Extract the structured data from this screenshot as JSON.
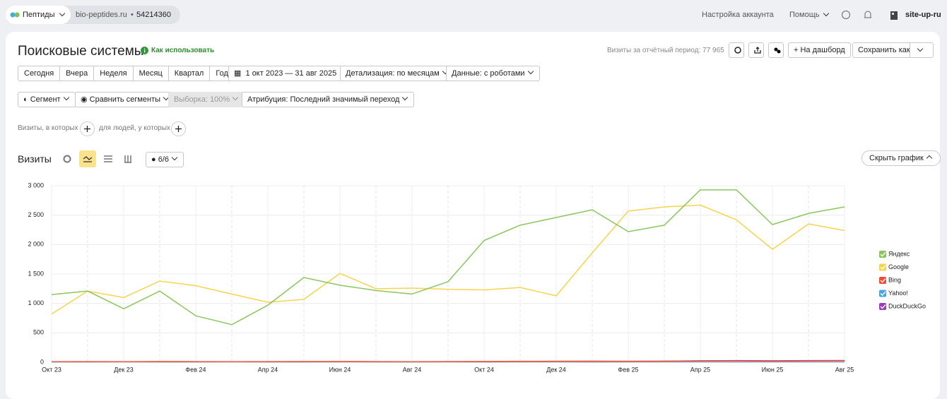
{
  "header": {
    "project": "Пептиды",
    "site": "bio-peptides.ru",
    "counter": "54214360",
    "account_settings": "Настройка аккаунта",
    "help": "Помощь",
    "user": "site-up-ru"
  },
  "report": {
    "title": "Поисковые системы",
    "how_to": "Как использовать",
    "visits_total": "Визиты за отчётный период: 77 965",
    "to_dashboard": "На дашборд",
    "save_as": "Сохранить как"
  },
  "periods": [
    "Сегодня",
    "Вчера",
    "Неделя",
    "Месяц",
    "Квартал",
    "Год"
  ],
  "date_range": "1 окт 2023 — 31 авг 2025",
  "detail": "Детализация: по месяцам",
  "data_mode": "Данные: с роботами",
  "segment": "Сегмент",
  "compare": "Сравнить сегменты",
  "sample": "Выборка: 100%",
  "attribution": "Атрибуция: Последний значимый переход",
  "filter_visits": "Визиты, в которых",
  "filter_people": "для людей, у которых",
  "chart_header": {
    "title": "Визиты",
    "annotations": "6/6",
    "hide": "Скрыть график"
  },
  "chart_data": {
    "type": "line",
    "categories": [
      "Окт 23",
      null,
      "Дек 23",
      null,
      "Фев 24",
      null,
      "Апр 24",
      null,
      "Июн 24",
      null,
      "Авг 24",
      null,
      "Окт 24",
      null,
      "Дек 24",
      null,
      "Фев 25",
      null,
      "Апр 25",
      null,
      "Июн 25",
      null,
      "Авг 25"
    ],
    "series": [
      {
        "name": "Яндекс",
        "color": "#8cc65c",
        "values": [
          1150,
          1210,
          910,
          1210,
          790,
          640,
          970,
          1440,
          1310,
          1220,
          1160,
          1370,
          2070,
          2330,
          2460,
          2590,
          2220,
          2330,
          2930,
          2930,
          2340,
          2530,
          2640
        ]
      },
      {
        "name": "Google",
        "color": "#f8d44c",
        "values": [
          820,
          1210,
          1100,
          1380,
          1300,
          1160,
          1020,
          1070,
          1510,
          1250,
          1260,
          1240,
          1230,
          1270,
          1130,
          1860,
          2570,
          2640,
          2670,
          2420,
          1920,
          2350,
          2240
        ]
      },
      {
        "name": "Bing",
        "color": "#f04b33",
        "values": [
          10,
          12,
          10,
          14,
          12,
          10,
          12,
          14,
          14,
          12,
          10,
          12,
          14,
          16,
          18,
          18,
          16,
          18,
          22,
          22,
          20,
          22,
          24
        ]
      },
      {
        "name": "Yahoo!",
        "color": "#4aa5e6",
        "values": [
          2,
          2,
          3,
          2,
          2,
          3,
          2,
          2,
          3,
          2,
          2,
          3,
          2,
          3,
          3,
          2,
          3,
          3,
          3,
          2,
          3,
          3,
          3
        ]
      },
      {
        "name": "DuckDuckGo",
        "color": "#9a3fb4",
        "values": [
          6,
          6,
          7,
          8,
          8,
          7,
          8,
          9,
          10,
          9,
          8,
          10,
          12,
          14,
          15,
          16,
          16,
          18,
          26,
          28,
          26,
          28,
          30
        ]
      }
    ],
    "ylim": [
      0,
      3000
    ],
    "yticks": [
      0,
      500,
      {
        "value": 1000,
        "label": "1 000"
      },
      {
        "value": 1500,
        "label": "1 500"
      },
      {
        "value": 2000,
        "label": "2 000"
      },
      {
        "value": 2500,
        "label": "2 500"
      },
      {
        "value": 3000,
        "label": "3 000"
      }
    ],
    "grid": true,
    "legend": "right"
  }
}
